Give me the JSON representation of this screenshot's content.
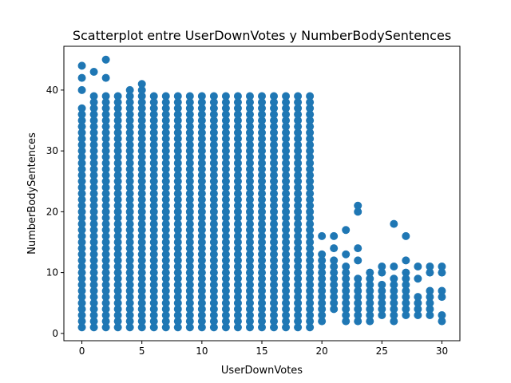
{
  "chart_data": {
    "type": "scatter",
    "title": "Scatterplot entre UserDownVotes y NumberBodySentences",
    "xlabel": "UserDownVotes",
    "ylabel": "NumberBodySentences",
    "xlim": [
      -1.5,
      31.5
    ],
    "ylim": [
      -1.2,
      47.2
    ],
    "xticks": [
      0,
      5,
      10,
      15,
      20,
      25,
      30
    ],
    "yticks": [
      0,
      10,
      20,
      30,
      40
    ],
    "grid": false,
    "legend": "none",
    "marker_color": "#1f77b4",
    "columns": [
      {
        "x": 0,
        "y_min": 1,
        "y_max": 37,
        "extra_y": [
          40,
          42,
          44
        ]
      },
      {
        "x": 1,
        "y_min": 1,
        "y_max": 39,
        "extra_y": [
          43
        ]
      },
      {
        "x": 2,
        "y_min": 1,
        "y_max": 39,
        "extra_y": [
          42,
          45
        ]
      },
      {
        "x": 3,
        "y_min": 1,
        "y_max": 39,
        "extra_y": []
      },
      {
        "x": 4,
        "y_min": 1,
        "y_max": 39,
        "extra_y": [
          40
        ]
      },
      {
        "x": 5,
        "y_min": 1,
        "y_max": 39,
        "extra_y": [
          40,
          41
        ]
      },
      {
        "x": 6,
        "y_min": 1,
        "y_max": 39,
        "extra_y": []
      },
      {
        "x": 7,
        "y_min": 1,
        "y_max": 39,
        "extra_y": []
      },
      {
        "x": 8,
        "y_min": 1,
        "y_max": 39,
        "extra_y": []
      },
      {
        "x": 9,
        "y_min": 1,
        "y_max": 39,
        "extra_y": []
      },
      {
        "x": 10,
        "y_min": 1,
        "y_max": 39,
        "extra_y": []
      },
      {
        "x": 11,
        "y_min": 1,
        "y_max": 39,
        "extra_y": []
      },
      {
        "x": 12,
        "y_min": 1,
        "y_max": 39,
        "extra_y": []
      },
      {
        "x": 13,
        "y_min": 1,
        "y_max": 39,
        "extra_y": []
      },
      {
        "x": 14,
        "y_min": 1,
        "y_max": 39,
        "extra_y": []
      },
      {
        "x": 15,
        "y_min": 1,
        "y_max": 39,
        "extra_y": []
      },
      {
        "x": 16,
        "y_min": 1,
        "y_max": 39,
        "extra_y": []
      },
      {
        "x": 17,
        "y_min": 1,
        "y_max": 39,
        "extra_y": []
      },
      {
        "x": 18,
        "y_min": 1,
        "y_max": 39,
        "extra_y": []
      },
      {
        "x": 19,
        "y_min": 1,
        "y_max": 39,
        "extra_y": []
      },
      {
        "x": 20,
        "y_min": 2,
        "y_max": 13,
        "extra_y": [
          16
        ]
      },
      {
        "x": 21,
        "y_min": 4,
        "y_max": 12,
        "extra_y": [
          14,
          16
        ]
      },
      {
        "x": 22,
        "y_min": 2,
        "y_max": 11,
        "extra_y": [
          13,
          17
        ]
      },
      {
        "x": 23,
        "y_min": 2,
        "y_max": 9,
        "extra_y": [
          12,
          14,
          20,
          21
        ]
      },
      {
        "x": 24,
        "y_min": 2,
        "y_max": 10,
        "extra_y": []
      },
      {
        "x": 25,
        "y_min": 3,
        "y_max": 8,
        "extra_y": [
          10,
          11
        ]
      },
      {
        "x": 26,
        "y_min": 2,
        "y_max": 9,
        "extra_y": [
          11,
          18
        ]
      },
      {
        "x": 27,
        "y_min": 3,
        "y_max": 10,
        "extra_y": [
          12,
          16
        ]
      },
      {
        "x": 28,
        "y_min": 3,
        "y_max": 6,
        "extra_y": [
          9,
          11
        ]
      },
      {
        "x": 29,
        "y_min": 3,
        "y_max": 7,
        "extra_y": [
          10,
          11
        ]
      },
      {
        "x": 30,
        "y_min": 2,
        "y_max": 3,
        "extra_y": [
          6,
          7,
          10,
          11
        ]
      }
    ]
  }
}
